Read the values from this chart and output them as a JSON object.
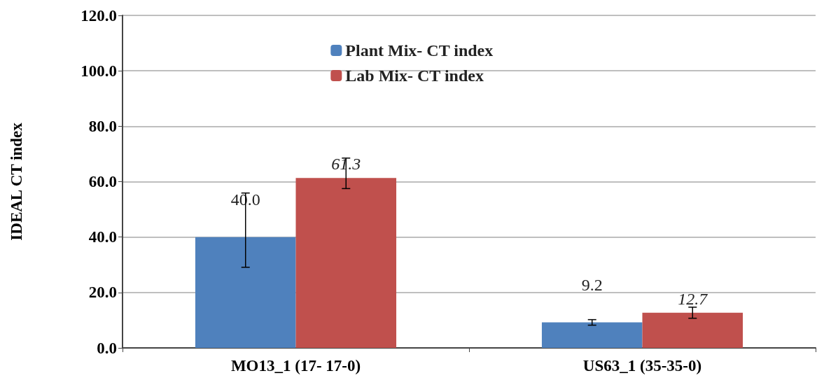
{
  "chart_data": {
    "type": "bar",
    "ylabel": "IDEAL CT index",
    "categories": [
      "MO13_1 (17- 17-0)",
      "US63_1 (35-35-0)"
    ],
    "series": [
      {
        "name": "Plant Mix- CT index",
        "color": "#4f81bd",
        "values": [
          40.0,
          9.2
        ],
        "errors": [
          [
            29.1,
            55.9
          ],
          [
            8.2,
            10.2
          ]
        ],
        "value_labels": [
          "40.0",
          "9.2"
        ]
      },
      {
        "name": "Lab Mix- CT index",
        "color": "#c0504d",
        "values": [
          61.3,
          12.7
        ],
        "errors": [
          [
            57.5,
            68.5
          ],
          [
            10.7,
            14.7
          ]
        ],
        "value_labels": [
          "61.3",
          "12.7"
        ]
      }
    ],
    "ylim": [
      0,
      120
    ],
    "yticks": [
      {
        "value": 0,
        "label": "0.0"
      },
      {
        "value": 20,
        "label": "20.0"
      },
      {
        "value": 40,
        "label": "40.0"
      },
      {
        "value": 60,
        "label": "60.0"
      },
      {
        "value": 80,
        "label": "80.0"
      },
      {
        "value": 100,
        "label": "100.0"
      },
      {
        "value": 120,
        "label": "120.0"
      }
    ],
    "grid": "y",
    "legend": "top"
  }
}
